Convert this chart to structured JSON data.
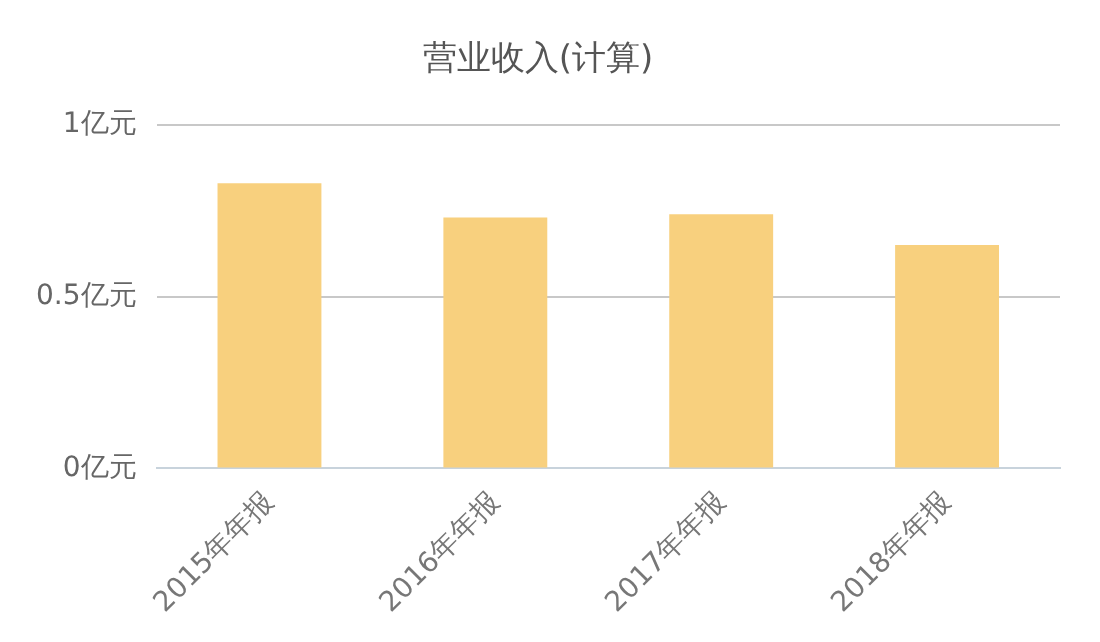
{
  "chart_data": {
    "type": "bar",
    "title": "营业收入(计算)",
    "categories": [
      "2015年年报",
      "2016年年报",
      "2017年年报",
      "2018年年报"
    ],
    "values": [
      0.83,
      0.73,
      0.74,
      0.65
    ],
    "color": "#f8d07e",
    "ylim": [
      0,
      1
    ],
    "yticks": [
      {
        "value": 0,
        "label": "0亿元"
      },
      {
        "value": 0.5,
        "label": "0.5亿元"
      },
      {
        "value": 1,
        "label": "1亿元"
      }
    ],
    "grid": "y",
    "legend": false
  }
}
